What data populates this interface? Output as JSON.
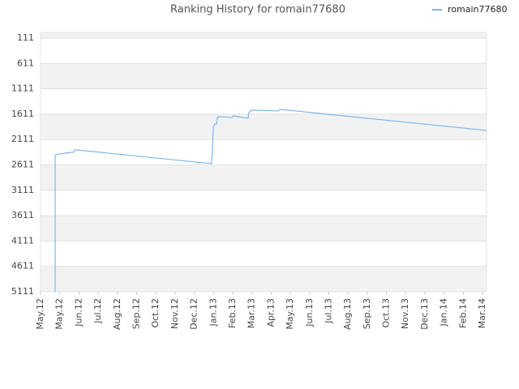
{
  "chart_data": {
    "type": "line",
    "title": "Ranking History for romain77680",
    "xlim": [
      0,
      23.21
    ],
    "xticks": [
      {
        "value": 0,
        "label": "May.12"
      },
      {
        "value": 1,
        "label": "May.12"
      },
      {
        "value": 2,
        "label": "Jun.12"
      },
      {
        "value": 3,
        "label": "Jul.12"
      },
      {
        "value": 4,
        "label": "Aug.12"
      },
      {
        "value": 5,
        "label": "Sep.12"
      },
      {
        "value": 6,
        "label": "Oct.12"
      },
      {
        "value": 7,
        "label": "Nov.12"
      },
      {
        "value": 8,
        "label": "Dec.12"
      },
      {
        "value": 9,
        "label": "Jan.13"
      },
      {
        "value": 10,
        "label": "Feb.13"
      },
      {
        "value": 11,
        "label": "Mar.13"
      },
      {
        "value": 12,
        "label": "Apr.13"
      },
      {
        "value": 13,
        "label": "May.13"
      },
      {
        "value": 14,
        "label": "Jun.13"
      },
      {
        "value": 15,
        "label": "Jul.13"
      },
      {
        "value": 16,
        "label": "Aug.13"
      },
      {
        "value": 17,
        "label": "Sep.13"
      },
      {
        "value": 18,
        "label": "Oct.13"
      },
      {
        "value": 19,
        "label": "Nov.13"
      },
      {
        "value": 20,
        "label": "Dec.13"
      },
      {
        "value": 21,
        "label": "Jan.14"
      },
      {
        "value": 22,
        "label": "Feb.14"
      },
      {
        "value": 23,
        "label": "Mar.14"
      }
    ],
    "ylim": [
      5111,
      0
    ],
    "yticks": [
      111,
      611,
      1111,
      1611,
      2111,
      2611,
      3111,
      3611,
      4111,
      4611,
      5111
    ],
    "grid": true,
    "legend": "top-right",
    "x": [
      0.76,
      0.76,
      1.27,
      1.73,
      1.77,
      1.86,
      8.9,
      8.95,
      8.99,
      9.07,
      9.16,
      9.2,
      9.28,
      9.96,
      10.04,
      10.8,
      10.84,
      10.97,
      12.36,
      12.45,
      23.21
    ],
    "series": [
      {
        "name": "romain77680",
        "color": "#7cb5ec",
        "values": [
          5111,
          2411,
          2380,
          2360,
          2315,
          2315,
          2586,
          2283,
          1868,
          1804,
          1804,
          1676,
          1660,
          1676,
          1644,
          1692,
          1580,
          1532,
          1548,
          1516,
          1932
        ]
      }
    ]
  }
}
